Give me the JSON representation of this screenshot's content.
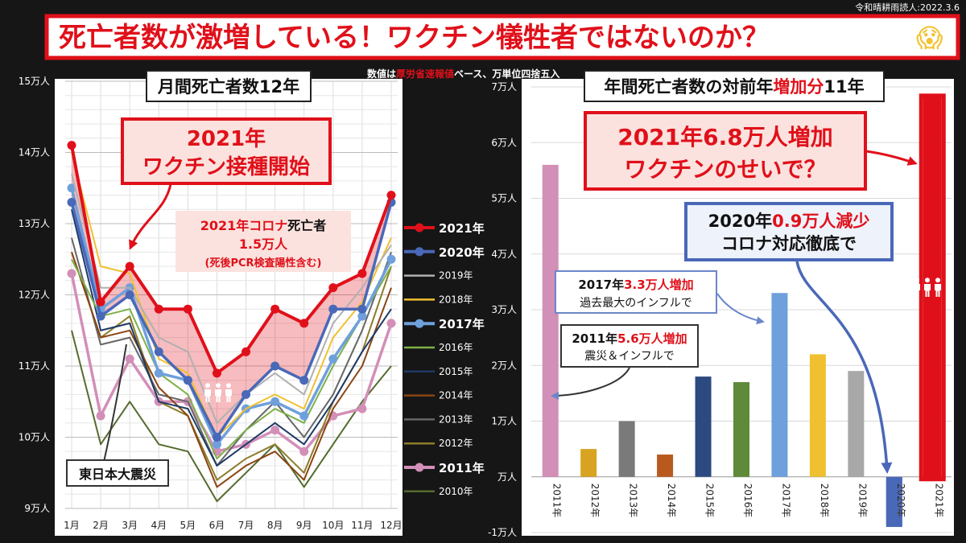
{
  "credit": "令和晴耕雨読人:2022.3.6",
  "headline": {
    "pre": "死亡者数が激増している！ワクチン犠牲者ではないのか？",
    "emoji": "😱"
  },
  "note": {
    "a": "数値は",
    "b": "厚労省速報値",
    "c": "ベース、万単位四捨五入"
  },
  "colors": {
    "red": "#e0101a",
    "blue": "#4a68b8",
    "panel": "#ffffff"
  },
  "left": {
    "title": "月間死亡者数12年",
    "callout_vaccine": {
      "line1": "2021年",
      "line2": "ワクチン接種開始"
    },
    "callout_corona": {
      "line1a": "2021年コロナ",
      "line1b": "死亡者",
      "line2": "1.5万人",
      "line3": "(死後PCR検査陽性含む)"
    },
    "quake_label": "東日本大震災",
    "people_icon_label": "people-icon"
  },
  "right": {
    "title_a": "年間死亡者数の対前年",
    "title_b": "増加分",
    "title_c": "11年",
    "callout_2021": {
      "line1": "2021年6.8万人増加",
      "line2": "ワクチンのせいで？"
    },
    "callout_2020": {
      "line1a": "2020年",
      "line1b": "0.9万人減少",
      "line2": "コロナ対応徹底で"
    },
    "callout_2017": {
      "line1a": "2017年",
      "line1b": "3.3万人増加",
      "line2": "過去最大のインフルで"
    },
    "callout_2011": {
      "line1a": "2011年",
      "line1b": "5.6万人増加",
      "line2": "震災＆インフルで"
    }
  },
  "chart_data": [
    {
      "type": "line",
      "title": "月間死亡者数12年",
      "xlabel": "",
      "ylabel": "",
      "categories": [
        "1月",
        "2月",
        "3月",
        "4月",
        "5月",
        "6月",
        "7月",
        "8月",
        "9月",
        "10月",
        "11月",
        "12月"
      ],
      "ylim": [
        9,
        15
      ],
      "yticks": [
        9,
        10,
        11,
        12,
        13,
        14,
        15
      ],
      "ytick_labels": [
        "9万人",
        "10万人",
        "11万人",
        "12万人",
        "13万人",
        "14万人",
        "15万人"
      ],
      "series": [
        {
          "name": "2010年",
          "color": "#556b2f",
          "width": 2,
          "marker": false,
          "bold": false,
          "values": [
            11.5,
            9.9,
            10.5,
            9.9,
            9.8,
            9.1,
            9.5,
            9.9,
            9.3,
            9.9,
            10.5,
            11.0
          ]
        },
        {
          "name": "2011年",
          "color": "#d28fb8",
          "width": 3.5,
          "marker": true,
          "bold": true,
          "values": [
            12.3,
            10.3,
            11.1,
            10.5,
            10.5,
            9.8,
            9.9,
            10.1,
            9.8,
            10.3,
            10.4,
            11.6
          ]
        },
        {
          "name": "2012年",
          "color": "#8b7d2a",
          "width": 2,
          "marker": false,
          "bold": false,
          "values": [
            12.6,
            11.4,
            11.7,
            10.5,
            10.3,
            9.4,
            9.7,
            9.9,
            9.5,
            10.5,
            11.2,
            12.4
          ]
        },
        {
          "name": "2013年",
          "color": "#666666",
          "width": 2,
          "marker": false,
          "bold": false,
          "values": [
            12.8,
            11.3,
            11.4,
            10.6,
            10.5,
            9.6,
            10.1,
            10.5,
            10.0,
            10.6,
            11.5,
            12.6
          ]
        },
        {
          "name": "2014年",
          "color": "#8b4513",
          "width": 2,
          "marker": false,
          "bold": false,
          "values": [
            12.6,
            11.4,
            11.5,
            10.7,
            10.3,
            9.3,
            9.6,
            9.8,
            9.4,
            10.4,
            11.0,
            12.1
          ]
        },
        {
          "name": "2015年",
          "color": "#1f3a66",
          "width": 2,
          "marker": false,
          "bold": false,
          "values": [
            13.2,
            11.5,
            11.6,
            10.5,
            10.4,
            9.6,
            9.9,
            10.2,
            9.9,
            10.5,
            11.2,
            11.8
          ]
        },
        {
          "name": "2016年",
          "color": "#7fb04a",
          "width": 2,
          "marker": false,
          "bold": false,
          "values": [
            12.5,
            11.7,
            11.8,
            10.9,
            10.6,
            9.7,
            10.1,
            10.4,
            10.2,
            11.0,
            11.7,
            12.4
          ]
        },
        {
          "name": "2017年",
          "color": "#6fa0dc",
          "width": 3.5,
          "marker": true,
          "bold": true,
          "values": [
            13.5,
            11.8,
            12.1,
            10.9,
            10.8,
            9.9,
            10.4,
            10.5,
            10.3,
            11.1,
            11.7,
            12.5
          ]
        },
        {
          "name": "2018年",
          "color": "#f0c030",
          "width": 2,
          "marker": false,
          "bold": false,
          "values": [
            14.0,
            12.4,
            12.3,
            11.1,
            10.9,
            10.0,
            10.4,
            10.6,
            10.4,
            11.4,
            11.9,
            12.8
          ]
        },
        {
          "name": "2019年",
          "color": "#b0b0b0",
          "width": 2,
          "marker": false,
          "bold": false,
          "values": [
            13.7,
            12.1,
            12.1,
            11.4,
            11.2,
            10.2,
            10.6,
            10.9,
            10.6,
            11.6,
            12.1,
            12.7
          ]
        },
        {
          "name": "2020年",
          "color": "#4a68b8",
          "width": 3.5,
          "marker": true,
          "bold": true,
          "values": [
            13.3,
            11.7,
            12.0,
            11.2,
            10.8,
            10.0,
            10.6,
            11.0,
            10.8,
            11.8,
            11.8,
            13.3
          ]
        },
        {
          "name": "2021年",
          "color": "#e0101a",
          "width": 4,
          "marker": true,
          "bold": true,
          "values": [
            14.1,
            11.9,
            12.4,
            11.8,
            11.8,
            10.9,
            11.2,
            11.8,
            11.6,
            12.1,
            12.3,
            13.4
          ]
        }
      ],
      "legend_order": [
        "2021年",
        "2020年",
        "2019年",
        "2018年",
        "2017年",
        "2016年",
        "2015年",
        "2014年",
        "2013年",
        "2012年",
        "2011年",
        "2010年"
      ],
      "legend_position": "right",
      "shaded_area_between": [
        "2021年",
        "2020年"
      ]
    },
    {
      "type": "bar",
      "title": "年間死亡者数の対前年増加分11年",
      "categories": [
        "2011年",
        "2012年",
        "2013年",
        "2014年",
        "2015年",
        "2016年",
        "2017年",
        "2018年",
        "2019年",
        "2020年",
        "2021年"
      ],
      "values": [
        5.6,
        0.5,
        1.0,
        0.4,
        1.8,
        1.7,
        3.3,
        2.2,
        1.9,
        -0.9,
        6.8
      ],
      "colors": [
        "#d28fb8",
        "#d8a320",
        "#7a7a7a",
        "#b85a1e",
        "#2c4a80",
        "#5e8a3a",
        "#6fa0dc",
        "#f0c030",
        "#a8a8a8",
        "#4a68b8",
        "#e0101a"
      ],
      "ylim": [
        -1,
        7
      ],
      "yticks": [
        -1,
        0,
        1,
        2,
        3,
        4,
        5,
        6,
        7
      ],
      "ytick_labels": [
        "-1万人",
        "万人",
        "1万人",
        "2万人",
        "3万人",
        "4万人",
        "5万人",
        "6万人",
        "7万人"
      ],
      "xlabel": "",
      "ylabel": ""
    }
  ]
}
